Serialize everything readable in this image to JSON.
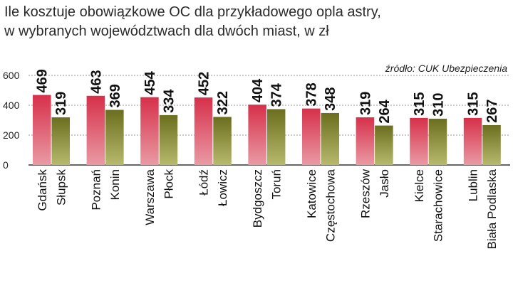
{
  "header": {
    "title_line1": "Ile kosztuje obowiązkowe OC dla przykładowego opla astry,",
    "title_line2": "w wybranych województwach dla dwóch miast, w zł",
    "source": "źródło: CUK Ubezpieczenia"
  },
  "colors": {
    "city_a_top": "#d6304a",
    "city_a_bottom": "#e99aa4",
    "city_b_top": "#6b6e1e",
    "city_b_bottom": "#b7b96d",
    "grid": "#9a9a9a"
  },
  "chart_data": {
    "type": "bar",
    "title": "Ile kosztuje obowiązkowe OC dla przykładowego opla astry, w wybranych województwach dla dwóch miast, w zł",
    "ylim": [
      0,
      600
    ],
    "yticks": [
      0,
      200,
      400,
      600
    ],
    "grid": true,
    "categories": [
      "Gdańsk",
      "Słupsk",
      "Poznań",
      "Konin",
      "Warszawa",
      "Płock",
      "Łódź",
      "Łowicz",
      "Bydgoszcz",
      "Toruń",
      "Katowice",
      "Częstochowa",
      "Rzeszów",
      "Jasło",
      "Kielce",
      "Starachowice",
      "Lublin",
      "Biała Podlaska"
    ],
    "values": [
      469,
      319,
      463,
      369,
      454,
      334,
      452,
      322,
      404,
      374,
      378,
      348,
      319,
      264,
      315,
      310,
      315,
      267
    ],
    "value_labels": [
      "469",
      "319",
      "463",
      "369",
      "454",
      "334",
      "452",
      "322",
      "404",
      "374",
      "378",
      "348",
      "319",
      "264",
      "315",
      "310",
      "315",
      "267"
    ]
  }
}
